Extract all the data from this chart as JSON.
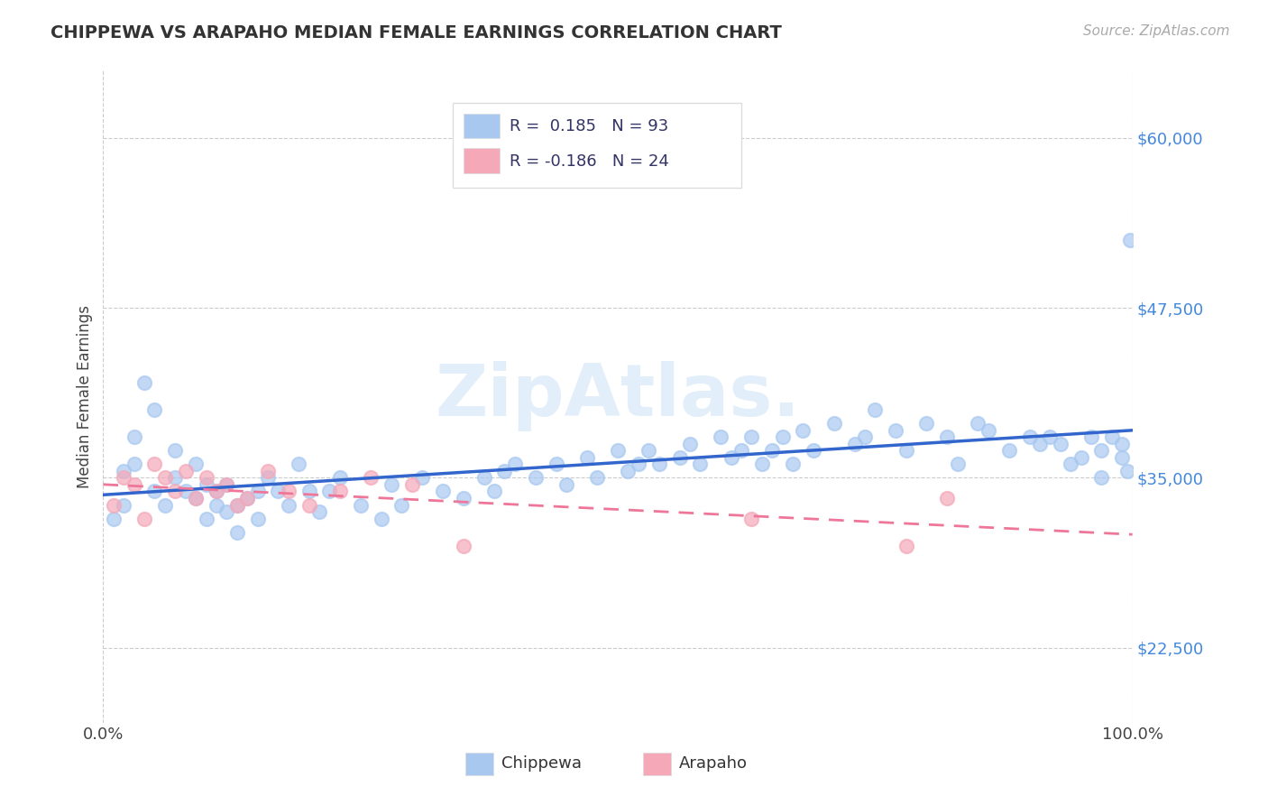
{
  "title": "CHIPPEWA VS ARAPAHO MEDIAN FEMALE EARNINGS CORRELATION CHART",
  "source_text": "Source: ZipAtlas.com",
  "ylabel": "Median Female Earnings",
  "xlim": [
    0.0,
    1.0
  ],
  "ylim": [
    17000,
    65000
  ],
  "yticks": [
    22500,
    35000,
    47500,
    60000
  ],
  "ytick_labels": [
    "$22,500",
    "$35,000",
    "$47,500",
    "$60,000"
  ],
  "xtick_labels": [
    "0.0%",
    "100.0%"
  ],
  "background_color": "#ffffff",
  "grid_color": "#cccccc",
  "chippewa_color": "#a8c8f0",
  "arapaho_color": "#f4a8b8",
  "chippewa_line_color": "#3366cc",
  "arapaho_line_color": "#ee7799",
  "watermark_text": "ZipAtlas.",
  "chippewa_x": [
    0.01,
    0.02,
    0.02,
    0.03,
    0.03,
    0.04,
    0.05,
    0.05,
    0.06,
    0.07,
    0.07,
    0.08,
    0.09,
    0.09,
    0.1,
    0.1,
    0.11,
    0.11,
    0.12,
    0.12,
    0.13,
    0.13,
    0.14,
    0.15,
    0.15,
    0.16,
    0.17,
    0.18,
    0.19,
    0.2,
    0.21,
    0.22,
    0.23,
    0.25,
    0.27,
    0.28,
    0.29,
    0.31,
    0.33,
    0.35,
    0.37,
    0.38,
    0.39,
    0.4,
    0.42,
    0.44,
    0.45,
    0.47,
    0.48,
    0.5,
    0.51,
    0.52,
    0.53,
    0.54,
    0.56,
    0.57,
    0.58,
    0.6,
    0.61,
    0.62,
    0.63,
    0.64,
    0.65,
    0.66,
    0.67,
    0.68,
    0.69,
    0.71,
    0.73,
    0.74,
    0.75,
    0.77,
    0.78,
    0.8,
    0.82,
    0.83,
    0.85,
    0.86,
    0.88,
    0.9,
    0.91,
    0.92,
    0.93,
    0.94,
    0.95,
    0.96,
    0.97,
    0.97,
    0.98,
    0.99,
    0.99,
    0.995,
    0.998
  ],
  "chippewa_y": [
    32000,
    33000,
    35500,
    38000,
    36000,
    42000,
    40000,
    34000,
    33000,
    37000,
    35000,
    34000,
    36000,
    33500,
    34500,
    32000,
    34000,
    33000,
    32500,
    34500,
    31000,
    33000,
    33500,
    34000,
    32000,
    35000,
    34000,
    33000,
    36000,
    34000,
    32500,
    34000,
    35000,
    33000,
    32000,
    34500,
    33000,
    35000,
    34000,
    33500,
    35000,
    34000,
    35500,
    36000,
    35000,
    36000,
    34500,
    36500,
    35000,
    37000,
    35500,
    36000,
    37000,
    36000,
    36500,
    37500,
    36000,
    38000,
    36500,
    37000,
    38000,
    36000,
    37000,
    38000,
    36000,
    38500,
    37000,
    39000,
    37500,
    38000,
    40000,
    38500,
    37000,
    39000,
    38000,
    36000,
    39000,
    38500,
    37000,
    38000,
    37500,
    38000,
    37500,
    36000,
    36500,
    38000,
    35000,
    37000,
    38000,
    37500,
    36500,
    35500,
    52500
  ],
  "arapaho_x": [
    0.01,
    0.02,
    0.03,
    0.04,
    0.05,
    0.06,
    0.07,
    0.08,
    0.09,
    0.1,
    0.11,
    0.12,
    0.13,
    0.14,
    0.16,
    0.18,
    0.2,
    0.23,
    0.26,
    0.3,
    0.35,
    0.63,
    0.78,
    0.82
  ],
  "arapaho_y": [
    33000,
    35000,
    34500,
    32000,
    36000,
    35000,
    34000,
    35500,
    33500,
    35000,
    34000,
    34500,
    33000,
    33500,
    35500,
    34000,
    33000,
    34000,
    35000,
    34500,
    30000,
    32000,
    30000,
    33500
  ]
}
